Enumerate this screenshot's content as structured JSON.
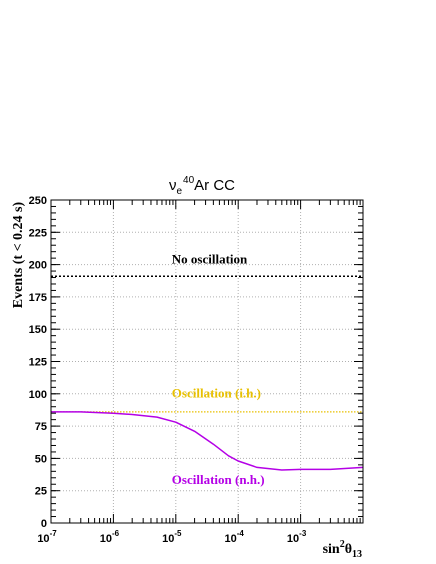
{
  "chart_data": {
    "type": "line",
    "title": {
      "main": "ν",
      "sub": "e",
      "sup": "40",
      "rest": "Ar CC"
    },
    "xlabel": {
      "main": "sin",
      "sup": "2",
      "greek": "θ",
      "sub": "13"
    },
    "ylabel": "Events (t < 0.24 s)",
    "xscale": "log",
    "xlim": [
      1e-07,
      0.01
    ],
    "ylim": [
      0,
      250
    ],
    "grid": true,
    "x_ticks": [
      {
        "value": 1e-07,
        "base": "10",
        "exp": "-7"
      },
      {
        "value": 1e-06,
        "base": "10",
        "exp": "-6"
      },
      {
        "value": 1e-05,
        "base": "10",
        "exp": "-5"
      },
      {
        "value": 0.0001,
        "base": "10",
        "exp": "-4"
      },
      {
        "value": 0.001,
        "base": "10",
        "exp": "-3"
      }
    ],
    "y_ticks": [
      0,
      25,
      50,
      75,
      100,
      125,
      150,
      175,
      200,
      225,
      250
    ],
    "series": [
      {
        "name": "No oscillation",
        "color": "#000000",
        "style": "dotted",
        "x": [
          1e-07,
          0.01
        ],
        "y": [
          191,
          191
        ]
      },
      {
        "name": "Oscillation (i.h.)",
        "color": "#e8c000",
        "style": "dotted",
        "x": [
          1e-07,
          1e-06,
          1e-05,
          0.0001,
          0.001,
          0.01
        ],
        "y": [
          86,
          86,
          86,
          86,
          86,
          86
        ]
      },
      {
        "name": "Oscillation (n.h.)",
        "color": "#b400e6",
        "style": "solid",
        "x": [
          1e-07,
          3e-07,
          1e-06,
          2e-06,
          5e-06,
          1e-05,
          2e-05,
          4e-05,
          7e-05,
          0.0001,
          0.0002,
          0.0005,
          0.001,
          0.003,
          0.01
        ],
        "y": [
          86,
          86,
          85,
          84,
          82,
          78,
          71,
          61,
          52,
          48,
          43,
          41,
          41.5,
          41.5,
          43
        ]
      }
    ],
    "annotations": [
      {
        "series": 0,
        "text": "No oscillation",
        "x": 1e-05,
        "y": 201
      },
      {
        "series": 1,
        "text": "Oscillation (i.h.)",
        "x": 1e-05,
        "y": 97
      },
      {
        "series": 2,
        "text": "Oscillation (n.h.)",
        "x": 1e-05,
        "y": 30
      }
    ]
  }
}
